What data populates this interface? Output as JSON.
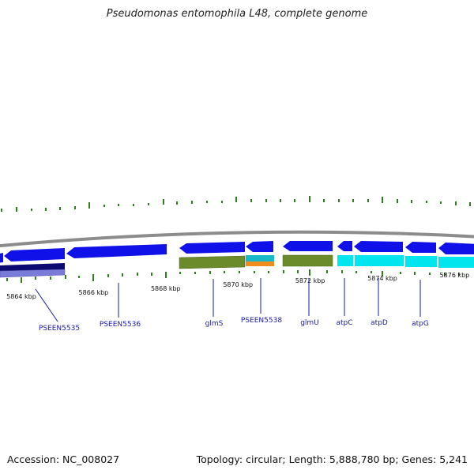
{
  "title": "Pseudomonas entomophila L48, complete genome",
  "footer": {
    "accession": "Accession: NC_008027",
    "summary": "Topology: circular; Length: 5,888,780 bp; Genes: 5,241"
  },
  "colors": {
    "backbone": "#8c8c8c",
    "gc_ticks": "#2e7d1e",
    "cds": "#1010e8",
    "cds_dark": "#0a0a70",
    "cds_light": "#7a7ad8",
    "rna_olive": "#6b8a2a",
    "atp_cyan": "#00e5ee",
    "teal": "#18b8c8",
    "orange": "#f08c1e",
    "label": "#1a1aa8",
    "tick_text": "#111111"
  },
  "scale_ticks": [
    {
      "kbp": 5864,
      "label": "5864 kbp"
    },
    {
      "kbp": 5866,
      "label": "5866 kbp"
    },
    {
      "kbp": 5868,
      "label": "5868 kbp"
    },
    {
      "kbp": 5870,
      "label": "5870 kbp"
    },
    {
      "kbp": 5872,
      "label": "5872 kbp"
    },
    {
      "kbp": 5874,
      "label": "5874 kbp"
    },
    {
      "kbp": 5876,
      "label": "5876 kbp"
    }
  ],
  "gene_labels": [
    {
      "name": "PSEEN5535"
    },
    {
      "name": "PSEEN5536"
    },
    {
      "name": "glmS"
    },
    {
      "name": "PSEEN5538"
    },
    {
      "name": "glmU"
    },
    {
      "name": "atpC"
    },
    {
      "name": "atpD"
    },
    {
      "name": "atpG"
    }
  ]
}
